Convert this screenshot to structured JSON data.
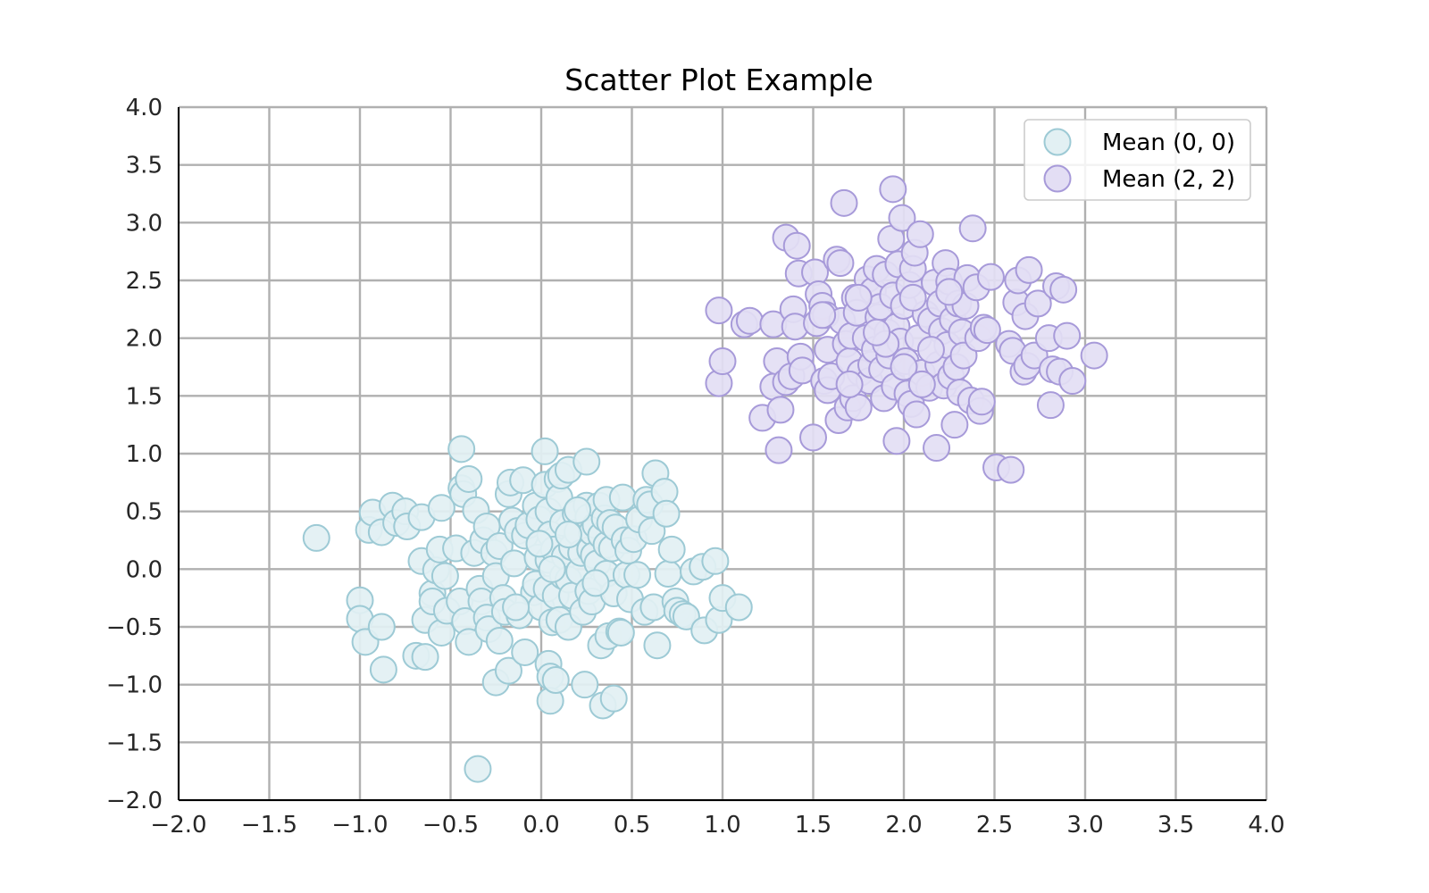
{
  "chart_data": {
    "type": "scatter",
    "title": "Scatter Plot Example",
    "xlabel": "",
    "ylabel": "",
    "xlim": [
      -2.0,
      4.0
    ],
    "ylim": [
      -2.0,
      4.0
    ],
    "xticks": [
      "−2.0",
      "−1.5",
      "−1.0",
      "−0.5",
      "0.0",
      "0.5",
      "1.0",
      "1.5",
      "2.0",
      "2.5",
      "3.0",
      "3.5",
      "4.0"
    ],
    "yticks": [
      "−2.0",
      "−1.5",
      "−1.0",
      "−0.5",
      "0.0",
      "0.5",
      "1.0",
      "1.5",
      "2.0",
      "2.5",
      "3.0",
      "3.5",
      "4.0"
    ],
    "grid": true,
    "legend_position": "top-right",
    "series": [
      {
        "name": "Mean (0, 0)",
        "fill": "#e2f0f3",
        "stroke": "#9dcad5",
        "points": [
          [
            -1.24,
            0.27
          ],
          [
            -1.0,
            -0.27
          ],
          [
            -1.0,
            -0.43
          ],
          [
            -0.97,
            -0.63
          ],
          [
            -0.95,
            0.34
          ],
          [
            -0.93,
            0.49
          ],
          [
            -0.88,
            0.32
          ],
          [
            -0.88,
            -0.5
          ],
          [
            -0.87,
            -0.87
          ],
          [
            -0.82,
            0.55
          ],
          [
            -0.8,
            0.4
          ],
          [
            -0.75,
            0.5
          ],
          [
            -0.74,
            0.37
          ],
          [
            -0.69,
            -0.75
          ],
          [
            -0.66,
            0.45
          ],
          [
            -0.64,
            -0.44
          ],
          [
            -0.64,
            -0.76
          ],
          [
            -0.66,
            0.07
          ],
          [
            -0.6,
            -0.21
          ],
          [
            -0.6,
            -0.28
          ],
          [
            -0.58,
            -0.01
          ],
          [
            -0.56,
            0.17
          ],
          [
            -0.55,
            0.53
          ],
          [
            -0.55,
            -0.55
          ],
          [
            -0.52,
            -0.36
          ],
          [
            -0.53,
            -0.06
          ],
          [
            -0.47,
            0.18
          ],
          [
            -0.45,
            -0.28
          ],
          [
            -0.44,
            1.04
          ],
          [
            -0.44,
            0.7
          ],
          [
            -0.43,
            0.65
          ],
          [
            -0.42,
            -0.45
          ],
          [
            -0.4,
            0.78
          ],
          [
            -0.4,
            -0.63
          ],
          [
            -0.37,
            0.14
          ],
          [
            -0.36,
            0.51
          ],
          [
            -0.35,
            -1.73
          ],
          [
            -0.34,
            -0.17
          ],
          [
            -0.33,
            -0.28
          ],
          [
            -0.32,
            0.25
          ],
          [
            -0.3,
            0.37
          ],
          [
            -0.3,
            -0.42
          ],
          [
            -0.29,
            -0.52
          ],
          [
            -0.26,
            0.14
          ],
          [
            -0.25,
            -0.06
          ],
          [
            -0.25,
            -0.98
          ],
          [
            -0.23,
            0.2
          ],
          [
            -0.23,
            -0.62
          ],
          [
            -0.21,
            -0.25
          ],
          [
            -0.2,
            -0.37
          ],
          [
            -0.18,
            -0.88
          ],
          [
            -0.18,
            0.65
          ],
          [
            -0.17,
            0.75
          ],
          [
            -0.16,
            0.42
          ],
          [
            -0.15,
            0.05
          ],
          [
            -0.13,
            0.33
          ],
          [
            -0.12,
            -0.4
          ],
          [
            -0.1,
            0.77
          ],
          [
            -0.09,
            -0.72
          ],
          [
            -0.09,
            0.29
          ],
          [
            -0.07,
            0.38
          ],
          [
            -0.04,
            -0.2
          ],
          [
            -0.03,
            -0.13
          ],
          [
            -0.03,
            0.55
          ],
          [
            -0.02,
            0.1
          ],
          [
            -0.01,
            0.43
          ],
          [
            0.0,
            -0.33
          ],
          [
            0.02,
            1.02
          ],
          [
            0.02,
            0.73
          ],
          [
            0.03,
            -0.17
          ],
          [
            0.04,
            0.5
          ],
          [
            0.04,
            0.08
          ],
          [
            0.04,
            -0.82
          ],
          [
            0.05,
            -0.93
          ],
          [
            0.05,
            -1.14
          ],
          [
            0.05,
            0.3
          ],
          [
            0.06,
            -0.46
          ],
          [
            0.07,
            0.17
          ],
          [
            0.08,
            -0.23
          ],
          [
            0.08,
            -0.96
          ],
          [
            0.09,
            0.78
          ],
          [
            0.1,
            0.62
          ],
          [
            0.1,
            -0.44
          ],
          [
            0.11,
            0.81
          ],
          [
            0.12,
            -0.06
          ],
          [
            0.12,
            0.4
          ],
          [
            0.13,
            0.11
          ],
          [
            0.15,
            0.86
          ],
          [
            0.15,
            -0.5
          ],
          [
            0.15,
            -0.09
          ],
          [
            0.17,
            0.19
          ],
          [
            0.17,
            -0.23
          ],
          [
            0.19,
            0.48
          ],
          [
            0.2,
            0.32
          ],
          [
            0.21,
            -0.02
          ],
          [
            0.22,
            0.14
          ],
          [
            0.23,
            -0.37
          ],
          [
            0.24,
            -1.0
          ],
          [
            0.25,
            0.55
          ],
          [
            0.25,
            0.93
          ],
          [
            0.26,
            0.45
          ],
          [
            0.26,
            -0.19
          ],
          [
            0.27,
            0.17
          ],
          [
            0.28,
            0.32
          ],
          [
            0.28,
            -0.28
          ],
          [
            0.29,
            0.12
          ],
          [
            0.3,
            0.38
          ],
          [
            0.31,
            0.05
          ],
          [
            0.32,
            0.55
          ],
          [
            0.33,
            -0.66
          ],
          [
            0.33,
            0.29
          ],
          [
            0.34,
            -1.18
          ],
          [
            0.35,
            0.44
          ],
          [
            0.36,
            0.6
          ],
          [
            0.36,
            0.21
          ],
          [
            0.36,
            -0.04
          ],
          [
            0.37,
            -0.58
          ],
          [
            0.38,
            0.4
          ],
          [
            0.39,
            0.18
          ],
          [
            0.4,
            -0.21
          ],
          [
            0.4,
            -1.12
          ],
          [
            0.41,
            0.36
          ],
          [
            0.43,
            -0.54
          ],
          [
            0.44,
            -0.55
          ],
          [
            0.45,
            0.62
          ],
          [
            0.46,
            0.25
          ],
          [
            0.47,
            -0.05
          ],
          [
            0.48,
            0.16
          ],
          [
            0.49,
            -0.26
          ],
          [
            0.51,
            0.26
          ],
          [
            0.53,
            -0.05
          ],
          [
            0.54,
            0.43
          ],
          [
            0.57,
            -0.37
          ],
          [
            0.58,
            0.6
          ],
          [
            0.6,
            0.56
          ],
          [
            0.61,
            0.33
          ],
          [
            0.62,
            -0.33
          ],
          [
            0.63,
            0.83
          ],
          [
            0.64,
            -0.66
          ],
          [
            0.68,
            0.67
          ],
          [
            0.69,
            0.48
          ],
          [
            0.7,
            -0.04
          ],
          [
            0.72,
            0.17
          ],
          [
            0.74,
            -0.28
          ],
          [
            0.75,
            -0.36
          ],
          [
            0.78,
            -0.39
          ],
          [
            0.8,
            -0.41
          ],
          [
            0.84,
            -0.02
          ],
          [
            0.89,
            0.02
          ],
          [
            0.9,
            -0.53
          ],
          [
            0.96,
            0.07
          ],
          [
            0.98,
            -0.44
          ],
          [
            1.0,
            -0.25
          ],
          [
            1.09,
            -0.33
          ],
          [
            0.2,
            0.51
          ],
          [
            -0.01,
            0.22
          ],
          [
            0.15,
            0.3
          ],
          [
            -0.14,
            -0.33
          ],
          [
            0.06,
            0.0
          ],
          [
            0.3,
            -0.12
          ]
        ]
      },
      {
        "name": "Mean (2, 2)",
        "fill": "#e3def4",
        "stroke": "#a79ad9",
        "points": [
          [
            0.98,
            2.24
          ],
          [
            0.98,
            1.61
          ],
          [
            1.0,
            1.8
          ],
          [
            1.12,
            2.12
          ],
          [
            1.15,
            2.15
          ],
          [
            1.22,
            1.31
          ],
          [
            1.28,
            1.58
          ],
          [
            1.28,
            2.12
          ],
          [
            1.3,
            1.8
          ],
          [
            1.31,
            1.03
          ],
          [
            1.32,
            1.38
          ],
          [
            1.35,
            1.62
          ],
          [
            1.35,
            2.87
          ],
          [
            1.38,
            1.67
          ],
          [
            1.39,
            2.25
          ],
          [
            1.4,
            2.1
          ],
          [
            1.41,
            2.8
          ],
          [
            1.42,
            2.56
          ],
          [
            1.43,
            1.84
          ],
          [
            1.44,
            1.72
          ],
          [
            1.5,
            1.14
          ],
          [
            1.51,
            2.57
          ],
          [
            1.52,
            2.13
          ],
          [
            1.53,
            2.38
          ],
          [
            1.55,
            2.28
          ],
          [
            1.56,
            1.63
          ],
          [
            1.57,
            2.2
          ],
          [
            1.58,
            1.55
          ],
          [
            1.58,
            1.9
          ],
          [
            1.6,
            1.67
          ],
          [
            1.63,
            2.68
          ],
          [
            1.64,
            1.29
          ],
          [
            1.65,
            2.65
          ],
          [
            1.66,
            2.15
          ],
          [
            1.67,
            3.17
          ],
          [
            1.68,
            1.95
          ],
          [
            1.69,
            1.4
          ],
          [
            1.7,
            1.8
          ],
          [
            1.71,
            2.02
          ],
          [
            1.72,
            1.48
          ],
          [
            1.73,
            2.35
          ],
          [
            1.74,
            2.22
          ],
          [
            1.75,
            1.4
          ],
          [
            1.76,
            1.7
          ],
          [
            1.79,
            2.0
          ],
          [
            1.8,
            2.51
          ],
          [
            1.81,
            1.63
          ],
          [
            1.82,
            1.77
          ],
          [
            1.83,
            2.41
          ],
          [
            1.84,
            1.9
          ],
          [
            1.85,
            2.6
          ],
          [
            1.86,
            2.18
          ],
          [
            1.87,
            2.27
          ],
          [
            1.88,
            1.73
          ],
          [
            1.89,
            1.48
          ],
          [
            1.9,
            2.55
          ],
          [
            1.91,
            2.05
          ],
          [
            1.92,
            1.85
          ],
          [
            1.93,
            2.86
          ],
          [
            1.94,
            3.29
          ],
          [
            1.94,
            2.37
          ],
          [
            1.95,
            1.58
          ],
          [
            1.96,
            2.1
          ],
          [
            1.96,
            1.11
          ],
          [
            1.97,
            2.64
          ],
          [
            1.98,
            1.97
          ],
          [
            1.99,
            3.04
          ],
          [
            2.0,
            2.28
          ],
          [
            2.01,
            1.8
          ],
          [
            2.02,
            1.52
          ],
          [
            2.03,
            2.46
          ],
          [
            2.04,
            1.43
          ],
          [
            2.05,
            2.6
          ],
          [
            2.06,
            2.74
          ],
          [
            2.07,
            1.34
          ],
          [
            2.08,
            2.0
          ],
          [
            2.09,
            2.9
          ],
          [
            2.1,
            1.7
          ],
          [
            2.12,
            2.21
          ],
          [
            2.14,
            1.57
          ],
          [
            2.15,
            2.15
          ],
          [
            2.17,
            2.48
          ],
          [
            2.18,
            1.05
          ],
          [
            2.19,
            1.77
          ],
          [
            2.2,
            2.3
          ],
          [
            2.21,
            2.06
          ],
          [
            2.22,
            1.59
          ],
          [
            2.23,
            2.65
          ],
          [
            2.24,
            1.94
          ],
          [
            2.25,
            2.49
          ],
          [
            2.26,
            1.67
          ],
          [
            2.27,
            2.16
          ],
          [
            2.28,
            1.25
          ],
          [
            2.29,
            1.75
          ],
          [
            2.3,
            2.3
          ],
          [
            2.31,
            1.53
          ],
          [
            2.32,
            2.05
          ],
          [
            2.33,
            1.85
          ],
          [
            2.34,
            2.28
          ],
          [
            2.35,
            2.52
          ],
          [
            2.37,
            1.46
          ],
          [
            2.38,
            2.95
          ],
          [
            2.4,
            2.44
          ],
          [
            2.41,
            2.0
          ],
          [
            2.42,
            1.37
          ],
          [
            2.43,
            1.45
          ],
          [
            2.44,
            2.09
          ],
          [
            2.46,
            2.07
          ],
          [
            2.48,
            2.53
          ],
          [
            2.51,
            0.88
          ],
          [
            2.58,
            1.95
          ],
          [
            2.59,
            0.86
          ],
          [
            2.6,
            1.89
          ],
          [
            2.62,
            2.31
          ],
          [
            2.63,
            2.5
          ],
          [
            2.66,
            1.71
          ],
          [
            2.67,
            2.19
          ],
          [
            2.68,
            1.76
          ],
          [
            2.69,
            2.59
          ],
          [
            2.72,
            1.85
          ],
          [
            2.74,
            2.3
          ],
          [
            2.8,
            2.0
          ],
          [
            2.81,
            1.42
          ],
          [
            2.82,
            1.73
          ],
          [
            2.84,
            2.45
          ],
          [
            2.86,
            1.71
          ],
          [
            2.88,
            2.42
          ],
          [
            2.9,
            2.02
          ],
          [
            2.93,
            1.63
          ],
          [
            3.05,
            1.85
          ],
          [
            1.55,
            2.2
          ],
          [
            1.75,
            2.35
          ],
          [
            2.05,
            2.35
          ],
          [
            1.9,
            1.95
          ],
          [
            2.0,
            1.75
          ],
          [
            2.15,
            1.9
          ],
          [
            1.85,
            2.05
          ],
          [
            2.25,
            2.4
          ],
          [
            1.7,
            1.6
          ],
          [
            2.1,
            1.6
          ]
        ]
      }
    ]
  }
}
